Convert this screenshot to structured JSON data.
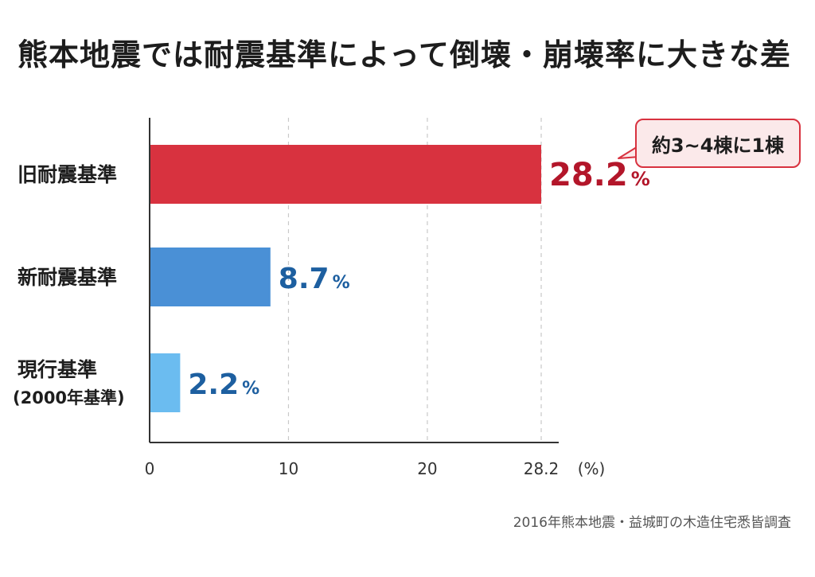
{
  "title": "熊本地震では耐震基準によって倒壊・崩壊率に大きな差",
  "source": "2016年熊本地震・益城町の木造住宅悉皆調査",
  "callout": {
    "text": "約3~4棟に1棟",
    "color": "#d8323f"
  },
  "chart_data": {
    "type": "bar",
    "orientation": "horizontal",
    "title": "熊本地震では耐震基準によって倒壊・崩壊率に大きな差",
    "categories": [
      {
        "line1": "旧耐震基準",
        "line2": ""
      },
      {
        "line1": "新耐震基準",
        "line2": ""
      },
      {
        "line1": "現行基準",
        "line2": "(2000年基準)"
      }
    ],
    "values": [
      28.2,
      8.7,
      2.2
    ],
    "value_labels": [
      "28.2",
      "8.7",
      "2.2"
    ],
    "value_unit": "%",
    "bar_colors": [
      "#d8323f",
      "#4a90d6",
      "#6bbcf0"
    ],
    "value_label_colors": [
      "#b3162a",
      "#1d5fa0",
      "#1d5fa0"
    ],
    "xlim": [
      0,
      28.2
    ],
    "xticks": [
      0,
      10,
      20,
      28.2
    ],
    "xtick_labels": [
      "0",
      "10",
      "20",
      "28.2"
    ],
    "xunit": "(%)",
    "xlabel": "",
    "ylabel": "",
    "grid": true,
    "grid_style": "dashed"
  }
}
